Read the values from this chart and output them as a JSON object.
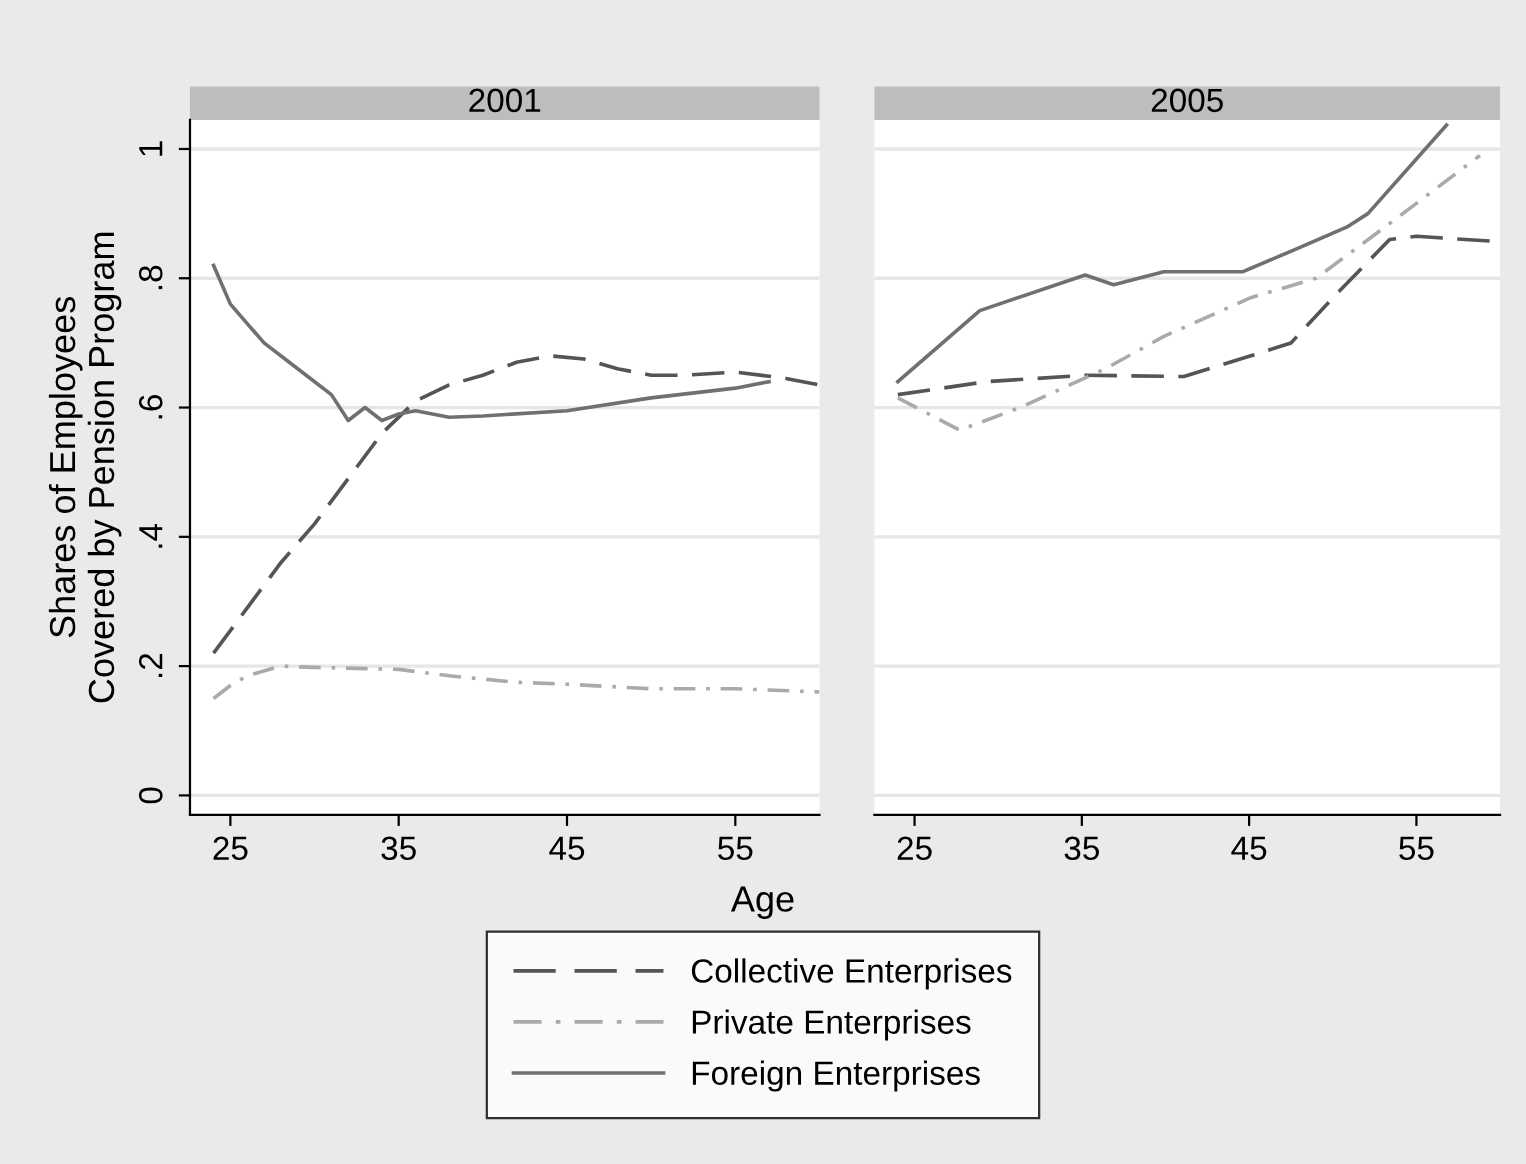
{
  "chart_data": [
    {
      "type": "line",
      "title": "2001",
      "xlabel": "Age",
      "ylabel": "Shares of Employees\nCovered by Pension Program",
      "xlim": [
        22.6,
        60
      ],
      "xticks": [
        25,
        35,
        45,
        55
      ],
      "ylim": [
        -0.03,
        1.045
      ],
      "yticks": [
        0,
        {
          "value": 0.2,
          "label": ".2"
        },
        {
          "value": 0.4,
          "label": ".4"
        },
        {
          "value": 0.6,
          "label": ".6"
        },
        {
          "value": 0.8,
          "label": ".8"
        },
        1
      ],
      "grid": "y",
      "legend": "bottom",
      "series": [
        {
          "name": "Collective Enterprises",
          "color": "#555555",
          "line_style": "dashed",
          "x": [
            24,
            26,
            28,
            30,
            32,
            34,
            36,
            38,
            40,
            42,
            44,
            46,
            48,
            50,
            52,
            55,
            58,
            60
          ],
          "values": [
            0.22,
            0.29,
            0.36,
            0.42,
            0.49,
            0.56,
            0.61,
            0.635,
            0.65,
            0.67,
            0.68,
            0.675,
            0.66,
            0.65,
            0.65,
            0.655,
            0.645,
            0.635
          ]
        },
        {
          "name": "Private Enterprises",
          "color": "#aaaaaa",
          "line_style": "dashdot",
          "x": [
            24,
            25,
            26,
            28,
            30,
            35,
            38,
            42,
            45,
            50,
            55,
            60
          ],
          "values": [
            0.15,
            0.17,
            0.185,
            0.2,
            0.198,
            0.195,
            0.185,
            0.175,
            0.172,
            0.165,
            0.165,
            0.16
          ]
        },
        {
          "name": "Foreign Enterprises",
          "color": "#707070",
          "line_style": "solid",
          "x": [
            24,
            25,
            27,
            29,
            31,
            32,
            33,
            34,
            35,
            36,
            38,
            40,
            45,
            50,
            55,
            57
          ],
          "values": [
            0.82,
            0.76,
            0.7,
            0.66,
            0.62,
            0.58,
            0.6,
            0.58,
            0.59,
            0.595,
            0.585,
            0.587,
            0.595,
            0.615,
            0.63,
            0.64
          ]
        }
      ]
    },
    {
      "type": "line",
      "title": "2005",
      "xlim": [
        22.6,
        60
      ],
      "xticks": [
        25,
        35,
        45,
        55
      ],
      "ylim": [
        -0.03,
        1.045
      ],
      "yticks": [
        {
          "value": 0,
          "label": null
        },
        {
          "value": 0.2,
          "label": null
        },
        {
          "value": 0.4,
          "label": null
        },
        {
          "value": 0.6,
          "label": null
        },
        {
          "value": 0.8,
          "label": null
        },
        {
          "value": 1,
          "label": null
        }
      ],
      "grid": "y",
      "tick_labels": "x",
      "series": [
        {
          "color": "#555555",
          "line_style": "dashed",
          "x": [
            24,
            29.3,
            35.2,
            41.1,
            45.1,
            47.5,
            50.2,
            53.4,
            55,
            59.7
          ],
          "values": [
            0.62,
            0.64,
            0.65,
            0.648,
            0.68,
            0.7,
            0.775,
            0.86,
            0.865,
            0.857
          ]
        },
        {
          "color": "#aaaaaa",
          "line_style": "dashdot",
          "x": [
            24,
            27.7,
            31.3,
            36.4,
            39.9,
            45.1,
            49,
            52.9,
            58.8
          ],
          "values": [
            0.615,
            0.565,
            0.6,
            0.66,
            0.71,
            0.77,
            0.8,
            0.875,
            0.99
          ]
        },
        {
          "color": "#707070",
          "line_style": "solid",
          "x": [
            24,
            28.9,
            35.2,
            36.9,
            39.9,
            44.6,
            47.8,
            50.9,
            52.1,
            56.8
          ],
          "values": [
            0.64,
            0.75,
            0.805,
            0.79,
            0.81,
            0.81,
            0.845,
            0.88,
            0.9,
            1.037
          ]
        }
      ]
    }
  ]
}
